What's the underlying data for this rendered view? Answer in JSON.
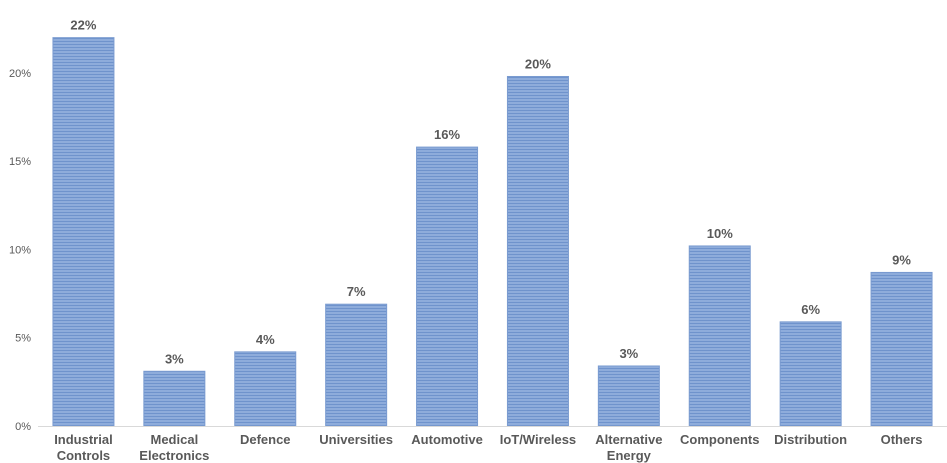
{
  "chart_data": {
    "type": "bar",
    "categories": [
      [
        "Industrial",
        "Controls"
      ],
      [
        "Medical",
        "Electronics"
      ],
      [
        "Defence"
      ],
      [
        "Universities"
      ],
      [
        "Automotive"
      ],
      [
        "IoT/Wireless"
      ],
      [
        "Alternative",
        "Energy"
      ],
      [
        "Components"
      ],
      [
        "Distribution"
      ],
      [
        "Others"
      ]
    ],
    "values": [
      22,
      3.1,
      4.2,
      6.9,
      15.8,
      19.8,
      3.4,
      10.2,
      5.9,
      8.7
    ],
    "data_labels": [
      "22%",
      "3%",
      "4%",
      "7%",
      "16%",
      "20%",
      "3%",
      "10%",
      "6%",
      "9%"
    ],
    "yticks": [
      0,
      5,
      10,
      15,
      20
    ],
    "ytick_labels": [
      "0%",
      "5%",
      "10%",
      "15%",
      "20%"
    ],
    "ylim": [
      0,
      23
    ],
    "title": "",
    "xlabel": "",
    "ylabel": "",
    "grid": false,
    "legend": "none",
    "colors": {
      "bar": "#8EACDB",
      "bar_stripe": "#6F93CC",
      "bar_edge": "#7A9BD0",
      "text": "#595959",
      "axis": "#D9D9D9"
    }
  }
}
